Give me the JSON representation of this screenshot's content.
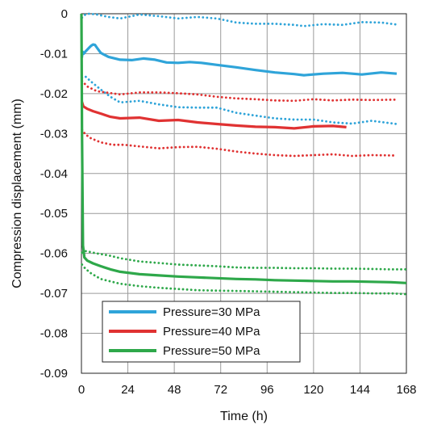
{
  "chart_data": {
    "type": "line",
    "xlabel": "Time (h)",
    "ylabel": "Compression displacement (mm)",
    "xlim": [
      0,
      168
    ],
    "ylim": [
      -0.09,
      0
    ],
    "xticks": [
      0,
      24,
      48,
      72,
      96,
      120,
      144,
      168
    ],
    "xtick_labels": [
      "0",
      "24",
      "48",
      "72",
      "96",
      "120",
      "144",
      "168"
    ],
    "yticks": [
      0,
      -0.01,
      -0.02,
      -0.03,
      -0.04,
      -0.05,
      -0.06,
      -0.07,
      -0.08,
      -0.09
    ],
    "ytick_labels": [
      "0",
      "-0.01",
      "-0.02",
      "-0.03",
      "-0.04",
      "-0.05",
      "-0.06",
      "-0.07",
      "-0.08",
      "-0.09"
    ],
    "grid": true,
    "legend_position": "bottom-left",
    "legend": [
      "Pressure=30 MPa",
      "Pressure=40 MPa",
      "Pressure=50 MPa"
    ],
    "colors": {
      "p30": "#2fa4d9",
      "p40": "#e03232",
      "p50": "#2ea84a"
    },
    "series": [
      {
        "name": "Pressure=30 MPa",
        "color": "#2fa4d9",
        "style": "solid",
        "x": [
          0.2,
          0.6,
          1.2,
          2,
          3,
          4,
          5,
          6,
          7,
          8,
          10,
          14,
          20,
          26,
          32,
          38,
          44,
          50,
          56,
          62,
          70,
          80,
          90,
          100,
          110,
          115,
          125,
          135,
          145,
          155,
          163
        ],
        "y": [
          -0.011,
          -0.0095,
          -0.01,
          -0.0095,
          -0.009,
          -0.0085,
          -0.008,
          -0.0077,
          -0.0078,
          -0.0085,
          -0.0098,
          -0.0108,
          -0.0115,
          -0.0116,
          -0.0112,
          -0.0115,
          -0.0122,
          -0.0123,
          -0.0121,
          -0.0123,
          -0.0128,
          -0.0134,
          -0.0141,
          -0.0147,
          -0.0151,
          -0.0154,
          -0.015,
          -0.0148,
          -0.0152,
          -0.0147,
          -0.015
        ]
      },
      {
        "name": "Pressure=30 MPa (upper bound)",
        "color": "#2fa4d9",
        "style": "dotted",
        "x": [
          0.3,
          2,
          4,
          8,
          14,
          20,
          30,
          40,
          50,
          60,
          70,
          80,
          90,
          100,
          110,
          115,
          125,
          135,
          145,
          155,
          163
        ],
        "y": [
          -0.001,
          -0.0002,
          0,
          -0.0002,
          -0.0008,
          -0.0012,
          -0.0002,
          -0.0006,
          -0.0012,
          -0.0008,
          -0.0012,
          -0.0022,
          -0.0025,
          -0.0025,
          -0.0028,
          -0.0031,
          -0.0026,
          -0.0028,
          -0.0021,
          -0.0022,
          -0.0027
        ]
      },
      {
        "name": "Pressure=30 MPa (lower bound)",
        "color": "#2fa4d9",
        "style": "dotted",
        "x": [
          0.3,
          2,
          5,
          10,
          15,
          20,
          30,
          40,
          50,
          60,
          70,
          80,
          90,
          100,
          110,
          120,
          130,
          140,
          150,
          163
        ],
        "y": [
          -0.016,
          -0.0157,
          -0.017,
          -0.019,
          -0.0208,
          -0.0222,
          -0.0218,
          -0.0227,
          -0.0234,
          -0.0235,
          -0.0235,
          -0.0248,
          -0.0255,
          -0.0262,
          -0.0265,
          -0.0265,
          -0.0272,
          -0.0275,
          -0.0268,
          -0.0276
        ]
      },
      {
        "name": "Pressure=40 MPa",
        "color": "#e03232",
        "style": "solid",
        "x": [
          0.2,
          1,
          3,
          6,
          10,
          15,
          20,
          30,
          40,
          50,
          60,
          70,
          80,
          90,
          100,
          110,
          120,
          130,
          137
        ],
        "y": [
          -0.022,
          -0.0232,
          -0.0238,
          -0.0244,
          -0.025,
          -0.0258,
          -0.0262,
          -0.026,
          -0.0268,
          -0.0266,
          -0.0272,
          -0.0276,
          -0.028,
          -0.0283,
          -0.0284,
          -0.0287,
          -0.0282,
          -0.0281,
          -0.0284
        ]
      },
      {
        "name": "Pressure=40 MPa (upper bound)",
        "color": "#e03232",
        "style": "dotted",
        "x": [
          0.3,
          3,
          8,
          14,
          20,
          30,
          40,
          50,
          60,
          70,
          80,
          90,
          100,
          110,
          120,
          130,
          140,
          150,
          163
        ],
        "y": [
          -0.0168,
          -0.0182,
          -0.0194,
          -0.0198,
          -0.0202,
          -0.0197,
          -0.0197,
          -0.0199,
          -0.0202,
          -0.0208,
          -0.0212,
          -0.0214,
          -0.0217,
          -0.0218,
          -0.0214,
          -0.0217,
          -0.0215,
          -0.0216,
          -0.0215
        ]
      },
      {
        "name": "Pressure=40 MPa (lower bound)",
        "color": "#e03232",
        "style": "dotted",
        "x": [
          0.3,
          2,
          5,
          10,
          16,
          22,
          30,
          40,
          50,
          60,
          70,
          80,
          90,
          100,
          110,
          120,
          130,
          140,
          150,
          163
        ],
        "y": [
          -0.029,
          -0.0302,
          -0.0312,
          -0.0322,
          -0.0328,
          -0.0328,
          -0.0332,
          -0.0337,
          -0.0334,
          -0.0333,
          -0.0338,
          -0.0345,
          -0.035,
          -0.0354,
          -0.0356,
          -0.0354,
          -0.0352,
          -0.0356,
          -0.0354,
          -0.0355
        ]
      },
      {
        "name": "Pressure=50 MPa",
        "color": "#2ea84a",
        "style": "solid",
        "x": [
          0,
          0.3,
          0.8,
          1.5,
          3,
          6,
          10,
          15,
          20,
          30,
          40,
          50,
          60,
          70,
          80,
          90,
          100,
          110,
          120,
          130,
          140,
          150,
          160,
          168
        ],
        "y": [
          0,
          -0.03,
          -0.058,
          -0.061,
          -0.0618,
          -0.0625,
          -0.0632,
          -0.064,
          -0.0646,
          -0.0652,
          -0.0655,
          -0.0658,
          -0.066,
          -0.0662,
          -0.0664,
          -0.0665,
          -0.0667,
          -0.0668,
          -0.0669,
          -0.067,
          -0.067,
          -0.0671,
          -0.0672,
          -0.0674
        ]
      },
      {
        "name": "Pressure=50 MPa (upper bound)",
        "color": "#2ea84a",
        "style": "dotted",
        "x": [
          0.3,
          2,
          4,
          8,
          14,
          20,
          30,
          40,
          50,
          60,
          70,
          80,
          90,
          100,
          110,
          120,
          130,
          140,
          150,
          160,
          168
        ],
        "y": [
          -0.0598,
          -0.0594,
          -0.0596,
          -0.06,
          -0.0605,
          -0.0612,
          -0.062,
          -0.0624,
          -0.0628,
          -0.063,
          -0.0632,
          -0.0635,
          -0.0636,
          -0.0636,
          -0.0637,
          -0.0637,
          -0.0638,
          -0.0638,
          -0.0639,
          -0.064,
          -0.064
        ]
      },
      {
        "name": "Pressure=50 MPa (lower bound)",
        "color": "#2ea84a",
        "style": "dotted",
        "x": [
          0.3,
          2,
          5,
          10,
          15,
          20,
          30,
          40,
          50,
          60,
          70,
          80,
          90,
          100,
          110,
          120,
          130,
          140,
          150,
          160,
          168
        ],
        "y": [
          -0.0628,
          -0.0638,
          -0.065,
          -0.0664,
          -0.067,
          -0.0676,
          -0.0682,
          -0.0686,
          -0.0689,
          -0.0692,
          -0.0693,
          -0.0694,
          -0.0695,
          -0.0696,
          -0.0697,
          -0.0698,
          -0.0699,
          -0.0699,
          -0.07,
          -0.07,
          -0.0702
        ]
      }
    ]
  }
}
